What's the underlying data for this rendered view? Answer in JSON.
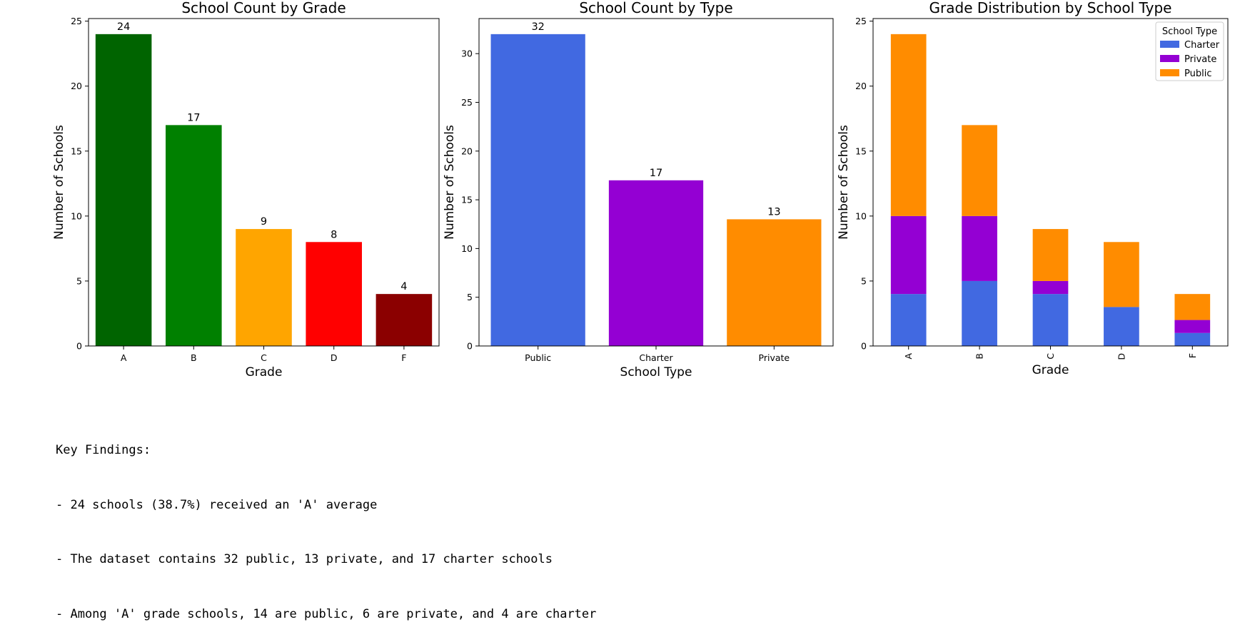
{
  "chart_data": [
    {
      "type": "bar",
      "title": "School Count by Grade",
      "xlabel": "Grade",
      "ylabel": "Number of Schools",
      "categories": [
        "A",
        "B",
        "C",
        "D",
        "F"
      ],
      "values": [
        24,
        17,
        9,
        8,
        4
      ],
      "colors": [
        "#006400",
        "#008000",
        "#FFA500",
        "#FF0000",
        "#8B0000"
      ],
      "ylim": [
        0,
        25.2
      ],
      "yticks": [
        0,
        5,
        10,
        15,
        20,
        25
      ],
      "data_labels": true,
      "grid": false
    },
    {
      "type": "bar",
      "title": "School Count by Type",
      "xlabel": "School Type",
      "ylabel": "Number of Schools",
      "categories": [
        "Public",
        "Charter",
        "Private"
      ],
      "values": [
        32,
        17,
        13
      ],
      "colors": [
        "#4169E1",
        "#9400D3",
        "#FF8C00"
      ],
      "ylim": [
        0,
        33.6
      ],
      "yticks": [
        0,
        5,
        10,
        15,
        20,
        25,
        30
      ],
      "data_labels": true,
      "grid": false
    },
    {
      "type": "bar",
      "stacked": true,
      "title": "Grade Distribution by School Type",
      "xlabel": "Grade",
      "ylabel": "Number of Schools",
      "categories": [
        "A",
        "B",
        "C",
        "D",
        "F"
      ],
      "series": [
        {
          "name": "Charter",
          "values": [
            4,
            5,
            4,
            3,
            1
          ],
          "color": "#4169E1"
        },
        {
          "name": "Private",
          "values": [
            6,
            5,
            1,
            0,
            1
          ],
          "color": "#9400D3"
        },
        {
          "name": "Public",
          "values": [
            14,
            7,
            4,
            5,
            2
          ],
          "color": "#FF8C00"
        }
      ],
      "ylim": [
        0,
        25.2
      ],
      "yticks": [
        0,
        5,
        10,
        15,
        20,
        25
      ],
      "legend_title": "School Type",
      "legend_position": "top-right",
      "xtick_rotation": 90,
      "grid": false
    }
  ],
  "findings": {
    "heading": "Key Findings:",
    "lines": [
      "- 24 schools (38.7%) received an 'A' average",
      "- The dataset contains 32 public, 13 private, and 17 charter schools",
      "- Among 'A' grade schools, 14 are public, 6 are private, and 4 are charter"
    ]
  }
}
